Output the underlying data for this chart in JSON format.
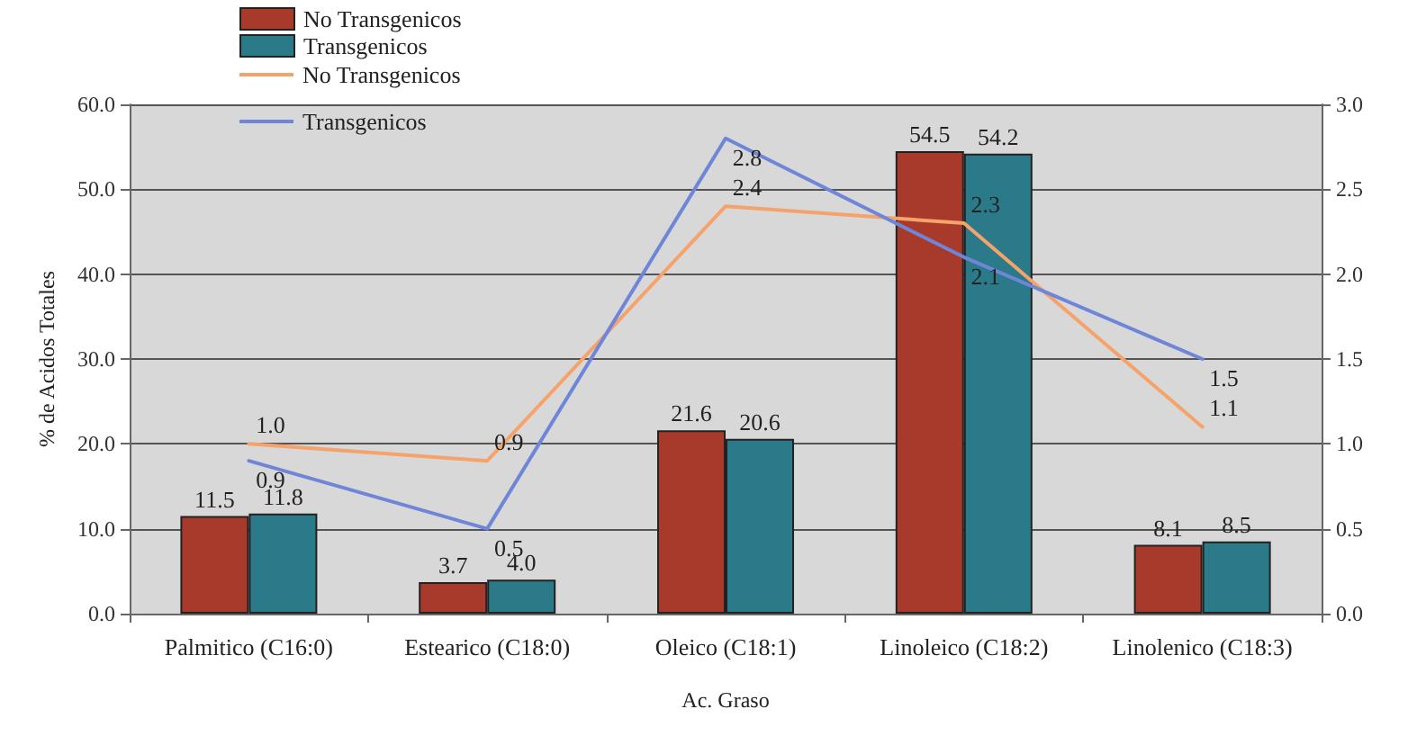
{
  "chart_data": {
    "type": "bar",
    "xlabel": "Ac. Graso",
    "ylabel": "% de Acidos Totales",
    "categories": [
      "Palmitico (C16:0)",
      "Estearico (C18:0)",
      "Oleico (C18:1)",
      "Linoleico (C18:2)",
      "Linolenico (C18:3)"
    ],
    "series": [
      {
        "name": "No Transgenicos",
        "color": "#a83a2c",
        "values": [
          11.5,
          3.7,
          21.6,
          54.5,
          8.1
        ],
        "value_labels": [
          "11.5",
          "3.7",
          "21.6",
          "54.5",
          "8.1"
        ]
      },
      {
        "name": "Transgenicos",
        "color": "#2a7a8a",
        "values": [
          11.8,
          4.0,
          20.6,
          54.2,
          8.5
        ],
        "value_labels": [
          "11.8",
          "4.0",
          "20.6",
          "54.2",
          "8.5"
        ]
      },
      {
        "name": "No Transgenicos",
        "type": "line",
        "axis": "y2",
        "color": "#f5a36a",
        "values": [
          1.0,
          0.9,
          2.4,
          2.3,
          1.1
        ],
        "value_labels": [
          "1.0",
          "0.9",
          "2.4",
          "2.3",
          "1.1"
        ]
      },
      {
        "name": "Transgenicos",
        "type": "line",
        "axis": "y2",
        "color": "#6f86d8",
        "values": [
          0.9,
          0.5,
          2.8,
          2.1,
          1.5
        ],
        "value_labels": [
          "0.9",
          "0.5",
          "2.8",
          "2.1",
          "1.5"
        ]
      }
    ],
    "ylim": [
      0,
      60
    ],
    "yticks": [
      {
        "value": 0,
        "label": "0.0"
      },
      {
        "value": 10,
        "label": "10.0"
      },
      {
        "value": 20,
        "label": "20.0"
      },
      {
        "value": 30,
        "label": "30.0"
      },
      {
        "value": 40,
        "label": "40.0"
      },
      {
        "value": 50,
        "label": "50.0"
      },
      {
        "value": 60,
        "label": "60.0"
      }
    ],
    "y2lim": [
      0,
      3
    ],
    "y2ticks": [
      {
        "value": 0,
        "label": "0.0"
      },
      {
        "value": 0.5,
        "label": "0.5"
      },
      {
        "value": 1,
        "label": "1.0"
      },
      {
        "value": 1.5,
        "label": "1.5"
      },
      {
        "value": 2,
        "label": "2.0"
      },
      {
        "value": 2.5,
        "label": "2.5"
      },
      {
        "value": 3,
        "label": "3.0"
      }
    ],
    "grid": "y",
    "legend": "top left",
    "marker": "none",
    "line_style": "solid"
  }
}
